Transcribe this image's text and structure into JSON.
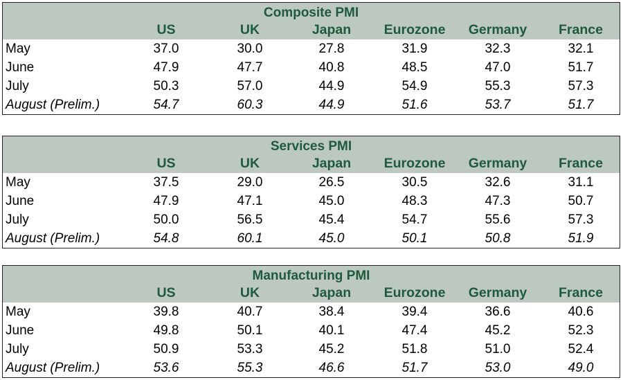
{
  "chart_data": [
    {
      "type": "table",
      "title": "Composite PMI",
      "columns": [
        "US",
        "UK",
        "Japan",
        "Eurozone",
        "Germany",
        "France"
      ],
      "rows": [
        {
          "label": "May",
          "values": [
            "37.0",
            "30.0",
            "27.8",
            "31.9",
            "32.3",
            "32.1"
          ],
          "italic": false
        },
        {
          "label": "June",
          "values": [
            "47.9",
            "47.7",
            "40.8",
            "48.5",
            "47.0",
            "51.7"
          ],
          "italic": false
        },
        {
          "label": "July",
          "values": [
            "50.3",
            "57.0",
            "44.9",
            "54.9",
            "55.3",
            "57.3"
          ],
          "italic": false
        },
        {
          "label": "August (Prelim.)",
          "values": [
            "54.7",
            "60.3",
            "44.9",
            "51.6",
            "53.7",
            "51.7"
          ],
          "italic": true
        }
      ]
    },
    {
      "type": "table",
      "title": "Services PMI",
      "columns": [
        "US",
        "UK",
        "Japan",
        "Eurozone",
        "Germany",
        "France"
      ],
      "rows": [
        {
          "label": "May",
          "values": [
            "37.5",
            "29.0",
            "26.5",
            "30.5",
            "32.6",
            "31.1"
          ],
          "italic": false
        },
        {
          "label": "June",
          "values": [
            "47.9",
            "47.1",
            "45.0",
            "48.3",
            "47.3",
            "50.7"
          ],
          "italic": false
        },
        {
          "label": "July",
          "values": [
            "50.0",
            "56.5",
            "45.4",
            "54.7",
            "55.6",
            "57.3"
          ],
          "italic": false
        },
        {
          "label": "August (Prelim.)",
          "values": [
            "54.8",
            "60.1",
            "45.0",
            "50.1",
            "50.8",
            "51.9"
          ],
          "italic": true
        }
      ]
    },
    {
      "type": "table",
      "title": "Manufacturing PMI",
      "columns": [
        "US",
        "UK",
        "Japan",
        "Eurozone",
        "Germany",
        "France"
      ],
      "rows": [
        {
          "label": "May",
          "values": [
            "39.8",
            "40.7",
            "38.4",
            "39.4",
            "36.6",
            "40.6"
          ],
          "italic": false
        },
        {
          "label": "June",
          "values": [
            "49.8",
            "50.1",
            "40.1",
            "47.4",
            "45.2",
            "52.3"
          ],
          "italic": false
        },
        {
          "label": "July",
          "values": [
            "50.9",
            "53.3",
            "45.2",
            "51.8",
            "51.0",
            "52.4"
          ],
          "italic": false
        },
        {
          "label": "August (Prelim.)",
          "values": [
            "53.6",
            "55.3",
            "46.6",
            "51.7",
            "53.0",
            "49.0"
          ],
          "italic": true
        }
      ]
    }
  ],
  "colors": {
    "header_background": "#bcc8c0",
    "header_text": "#1e5a3e",
    "body_text": "#000000"
  }
}
